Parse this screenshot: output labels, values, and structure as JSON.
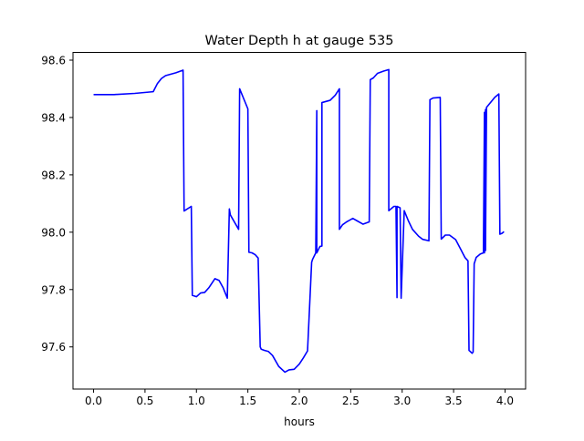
{
  "chart_data": {
    "type": "line",
    "title": "Water Depth h at gauge 535",
    "xlabel": "hours",
    "ylabel": "",
    "xlim": [
      -0.2,
      4.2
    ],
    "ylim": [
      97.453,
      98.627
    ],
    "xticks": [
      0.0,
      0.5,
      1.0,
      1.5,
      2.0,
      2.5,
      3.0,
      3.5,
      4.0
    ],
    "xtick_labels": [
      "0.0",
      "0.5",
      "1.0",
      "1.5",
      "2.0",
      "2.5",
      "3.0",
      "3.5",
      "4.0"
    ],
    "yticks": [
      97.6,
      97.8,
      98.0,
      98.2,
      98.4,
      98.6
    ],
    "ytick_labels": [
      "97.6",
      "97.8",
      "98.0",
      "98.2",
      "98.4",
      "98.6"
    ],
    "grid": false,
    "legend": "none",
    "colors": {
      "line": "#0000ff",
      "axes": "#000000",
      "background": "#ffffff"
    },
    "series": [
      {
        "x": [
          0.0,
          0.2,
          0.4,
          0.58,
          0.62,
          0.66,
          0.7,
          0.74,
          0.8,
          0.87,
          0.88,
          0.95,
          0.96,
          0.96,
          1.0,
          1.04,
          1.08,
          1.12,
          1.18,
          1.22,
          1.26,
          1.3,
          1.32,
          1.33,
          1.41,
          1.42,
          1.5,
          1.51,
          1.54,
          1.57,
          1.6,
          1.62,
          1.63,
          1.66,
          1.7,
          1.74,
          1.8,
          1.86,
          1.9,
          1.95,
          2.0,
          2.04,
          2.08,
          2.12,
          2.13,
          2.16,
          2.17,
          2.17,
          2.2,
          2.2,
          2.22,
          2.22,
          2.3,
          2.35,
          2.39,
          2.39,
          2.42,
          2.46,
          2.52,
          2.56,
          2.62,
          2.68,
          2.69,
          2.69,
          2.72,
          2.76,
          2.82,
          2.87,
          2.87,
          2.92,
          2.94,
          2.95,
          2.95,
          2.98,
          2.99,
          3.02,
          3.06,
          3.1,
          3.16,
          3.2,
          3.26,
          3.27,
          3.27,
          3.3,
          3.37,
          3.38,
          3.42,
          3.46,
          3.52,
          3.57,
          3.61,
          3.64,
          3.65,
          3.68,
          3.69,
          3.7,
          3.72,
          3.76,
          3.79,
          3.8,
          3.8,
          3.81,
          3.81,
          3.82,
          3.9,
          3.94,
          3.95,
          3.97,
          3.99
        ],
        "values": [
          98.48,
          98.48,
          98.484,
          98.49,
          98.518,
          98.536,
          98.546,
          98.55,
          98.556,
          98.565,
          98.074,
          98.09,
          97.78,
          97.78,
          97.775,
          97.788,
          97.79,
          97.806,
          97.838,
          97.832,
          97.806,
          97.77,
          98.081,
          98.06,
          98.01,
          98.5,
          98.43,
          97.93,
          97.928,
          97.922,
          97.91,
          97.6,
          97.592,
          97.588,
          97.584,
          97.57,
          97.532,
          97.512,
          97.52,
          97.522,
          97.54,
          97.562,
          97.586,
          97.895,
          97.906,
          97.928,
          98.424,
          97.928,
          97.95,
          97.95,
          97.952,
          98.452,
          98.46,
          98.478,
          98.5,
          98.01,
          98.026,
          98.036,
          98.048,
          98.04,
          98.028,
          98.036,
          98.532,
          98.532,
          98.538,
          98.554,
          98.562,
          98.567,
          98.075,
          98.09,
          98.09,
          97.772,
          98.09,
          98.085,
          97.77,
          98.075,
          98.04,
          98.01,
          97.986,
          97.975,
          97.97,
          98.462,
          98.462,
          98.468,
          98.47,
          97.976,
          97.99,
          97.99,
          97.974,
          97.94,
          97.912,
          97.9,
          97.588,
          97.578,
          97.582,
          97.89,
          97.912,
          97.924,
          97.928,
          98.418,
          97.928,
          98.428,
          97.936,
          98.435,
          98.47,
          98.482,
          97.993,
          97.996,
          98.002
        ]
      }
    ]
  }
}
